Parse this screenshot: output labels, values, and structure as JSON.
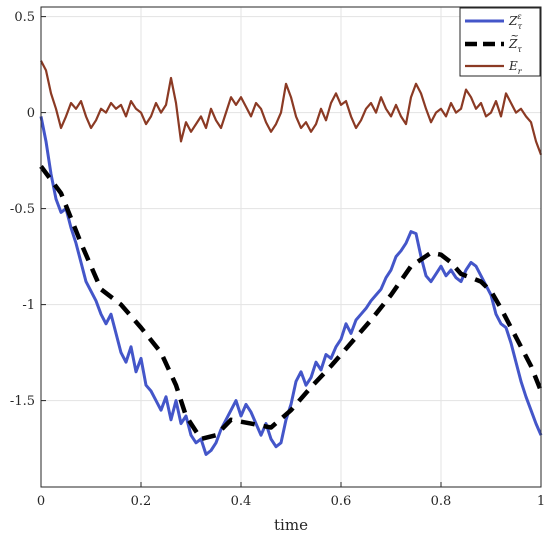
{
  "chart_data": {
    "type": "line",
    "title": "",
    "xlabel": "time",
    "ylabel": "",
    "xlim": [
      0,
      1
    ],
    "ylim": [
      -1.95,
      0.55
    ],
    "grid": true,
    "legend_position": "top-right",
    "xticks": [
      0,
      0.2,
      0.4,
      0.6,
      0.8,
      1
    ],
    "xtick_labels": [
      "0",
      "0.2",
      "0.4",
      "0.6",
      "0.8",
      "1"
    ],
    "yticks": [
      0.5,
      0,
      -0.5,
      -1,
      -1.5
    ],
    "ytick_labels": [
      "0.5",
      "0",
      "-0.5",
      "-1",
      "-1.5"
    ],
    "series": [
      {
        "name": "Z^ε_τ",
        "label_main": "Z",
        "label_sup": "ε",
        "label_sub": "τ",
        "color": "#4456c9",
        "style": "solid",
        "x": [
          0,
          0.01,
          0.02,
          0.03,
          0.04,
          0.05,
          0.06,
          0.07,
          0.08,
          0.09,
          0.1,
          0.11,
          0.12,
          0.13,
          0.14,
          0.15,
          0.16,
          0.17,
          0.18,
          0.19,
          0.2,
          0.21,
          0.22,
          0.23,
          0.24,
          0.25,
          0.26,
          0.27,
          0.28,
          0.29,
          0.3,
          0.31,
          0.32,
          0.33,
          0.34,
          0.35,
          0.36,
          0.37,
          0.38,
          0.39,
          0.4,
          0.41,
          0.42,
          0.43,
          0.44,
          0.45,
          0.46,
          0.47,
          0.48,
          0.49,
          0.5,
          0.51,
          0.52,
          0.53,
          0.54,
          0.55,
          0.56,
          0.57,
          0.58,
          0.59,
          0.6,
          0.61,
          0.62,
          0.63,
          0.64,
          0.65,
          0.66,
          0.67,
          0.68,
          0.69,
          0.7,
          0.71,
          0.72,
          0.73,
          0.74,
          0.75,
          0.76,
          0.77,
          0.78,
          0.79,
          0.8,
          0.81,
          0.82,
          0.83,
          0.84,
          0.85,
          0.86,
          0.87,
          0.88,
          0.89,
          0.9,
          0.91,
          0.92,
          0.93,
          0.94,
          0.95,
          0.96,
          0.97,
          0.98,
          0.99,
          1.0
        ],
        "y": [
          -0.02,
          -0.15,
          -0.32,
          -0.45,
          -0.52,
          -0.5,
          -0.6,
          -0.68,
          -0.78,
          -0.88,
          -0.93,
          -0.98,
          -1.05,
          -1.1,
          -1.05,
          -1.15,
          -1.25,
          -1.3,
          -1.22,
          -1.35,
          -1.28,
          -1.42,
          -1.45,
          -1.5,
          -1.55,
          -1.48,
          -1.6,
          -1.5,
          -1.62,
          -1.58,
          -1.68,
          -1.72,
          -1.7,
          -1.78,
          -1.76,
          -1.72,
          -1.65,
          -1.6,
          -1.55,
          -1.5,
          -1.58,
          -1.52,
          -1.56,
          -1.62,
          -1.68,
          -1.62,
          -1.7,
          -1.74,
          -1.72,
          -1.6,
          -1.52,
          -1.4,
          -1.35,
          -1.42,
          -1.38,
          -1.3,
          -1.34,
          -1.26,
          -1.28,
          -1.22,
          -1.18,
          -1.1,
          -1.15,
          -1.08,
          -1.05,
          -1.02,
          -0.98,
          -0.95,
          -0.92,
          -0.86,
          -0.82,
          -0.75,
          -0.72,
          -0.68,
          -0.62,
          -0.63,
          -0.75,
          -0.85,
          -0.88,
          -0.84,
          -0.8,
          -0.85,
          -0.82,
          -0.86,
          -0.88,
          -0.82,
          -0.78,
          -0.8,
          -0.85,
          -0.9,
          -0.95,
          -1.05,
          -1.1,
          -1.12,
          -1.2,
          -1.3,
          -1.4,
          -1.48,
          -1.55,
          -1.62,
          -1.68
        ]
      },
      {
        "name": "Z̃_τ",
        "label_main": "Z",
        "label_accent": "~",
        "label_sub": "τ",
        "color": "#000000",
        "style": "dashed",
        "x": [
          0,
          0.04,
          0.08,
          0.12,
          0.16,
          0.2,
          0.24,
          0.27,
          0.29,
          0.32,
          0.35,
          0.38,
          0.42,
          0.46,
          0.5,
          0.54,
          0.58,
          0.62,
          0.66,
          0.7,
          0.74,
          0.78,
          0.8,
          0.82,
          0.84,
          0.86,
          0.88,
          0.9,
          0.92,
          0.94,
          0.96,
          0.98,
          1.0
        ],
        "y": [
          -0.28,
          -0.42,
          -0.68,
          -0.92,
          -1.0,
          -1.12,
          -1.25,
          -1.42,
          -1.58,
          -1.7,
          -1.68,
          -1.6,
          -1.62,
          -1.64,
          -1.55,
          -1.43,
          -1.32,
          -1.2,
          -1.08,
          -0.95,
          -0.8,
          -0.73,
          -0.74,
          -0.78,
          -0.84,
          -0.86,
          -0.88,
          -0.93,
          -1.02,
          -1.12,
          -1.22,
          -1.32,
          -1.45
        ]
      },
      {
        "name": "E_r",
        "label_main": "E",
        "label_sub": "r",
        "color": "#8b3a24",
        "style": "solid",
        "x": [
          0,
          0.01,
          0.02,
          0.03,
          0.04,
          0.05,
          0.06,
          0.07,
          0.08,
          0.09,
          0.1,
          0.11,
          0.12,
          0.13,
          0.14,
          0.15,
          0.16,
          0.17,
          0.18,
          0.19,
          0.2,
          0.21,
          0.22,
          0.23,
          0.24,
          0.25,
          0.26,
          0.27,
          0.28,
          0.29,
          0.3,
          0.31,
          0.32,
          0.33,
          0.34,
          0.35,
          0.36,
          0.37,
          0.38,
          0.39,
          0.4,
          0.41,
          0.42,
          0.43,
          0.44,
          0.45,
          0.46,
          0.47,
          0.48,
          0.49,
          0.5,
          0.51,
          0.52,
          0.53,
          0.54,
          0.55,
          0.56,
          0.57,
          0.58,
          0.59,
          0.6,
          0.61,
          0.62,
          0.63,
          0.64,
          0.65,
          0.66,
          0.67,
          0.68,
          0.69,
          0.7,
          0.71,
          0.72,
          0.73,
          0.74,
          0.75,
          0.76,
          0.77,
          0.78,
          0.79,
          0.8,
          0.81,
          0.82,
          0.83,
          0.84,
          0.85,
          0.86,
          0.87,
          0.88,
          0.89,
          0.9,
          0.91,
          0.92,
          0.93,
          0.94,
          0.95,
          0.96,
          0.97,
          0.98,
          0.99,
          1.0
        ],
        "y": [
          0.27,
          0.22,
          0.1,
          0.02,
          -0.08,
          -0.02,
          0.05,
          0.02,
          0.06,
          -0.02,
          -0.08,
          -0.04,
          0.02,
          0.0,
          0.05,
          0.02,
          0.04,
          -0.02,
          0.06,
          0.02,
          0.0,
          -0.06,
          -0.02,
          0.05,
          0.0,
          0.04,
          0.18,
          0.05,
          -0.15,
          -0.05,
          -0.1,
          -0.06,
          -0.02,
          -0.08,
          0.02,
          -0.04,
          -0.08,
          0.0,
          0.08,
          0.04,
          0.08,
          0.03,
          -0.02,
          0.05,
          0.02,
          -0.05,
          -0.1,
          -0.06,
          0.0,
          0.15,
          0.08,
          -0.02,
          -0.08,
          -0.05,
          -0.1,
          -0.06,
          0.02,
          -0.04,
          0.05,
          0.1,
          0.04,
          0.06,
          -0.02,
          -0.08,
          -0.04,
          0.02,
          0.05,
          0.0,
          0.08,
          0.02,
          -0.02,
          0.04,
          -0.02,
          -0.06,
          0.08,
          0.15,
          0.1,
          0.02,
          -0.05,
          0.0,
          0.02,
          -0.02,
          0.05,
          0.0,
          0.02,
          0.12,
          0.08,
          0.02,
          0.05,
          -0.02,
          0.0,
          0.06,
          -0.02,
          0.1,
          0.05,
          0.0,
          0.02,
          -0.02,
          -0.05,
          -0.15,
          -0.22
        ]
      }
    ]
  }
}
